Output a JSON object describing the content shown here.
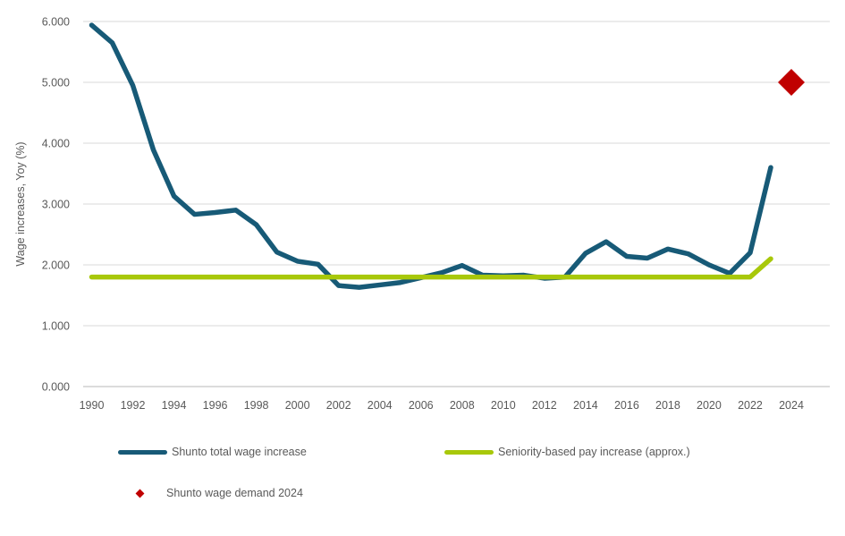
{
  "chart_data": {
    "type": "line",
    "title": "",
    "xlabel": "",
    "ylabel": "Wage increases, Yoy (%)",
    "xlim": [
      1990,
      2024
    ],
    "ylim": [
      0,
      6
    ],
    "grid": true,
    "legend_position": "bottom",
    "x_ticks": [
      "1990",
      "1992",
      "1994",
      "1996",
      "1998",
      "2000",
      "2002",
      "2004",
      "2006",
      "2008",
      "2010",
      "2012",
      "2014",
      "2016",
      "2018",
      "2020",
      "2022",
      "2024"
    ],
    "y_ticks": [
      "0.000",
      "1.000",
      "2.000",
      "3.000",
      "4.000",
      "5.000",
      "6.000"
    ],
    "x": [
      1990,
      1991,
      1992,
      1993,
      1994,
      1995,
      1996,
      1997,
      1998,
      1999,
      2000,
      2001,
      2002,
      2003,
      2004,
      2005,
      2006,
      2007,
      2008,
      2009,
      2010,
      2011,
      2012,
      2013,
      2014,
      2015,
      2016,
      2017,
      2018,
      2019,
      2020,
      2021,
      2022,
      2023
    ],
    "series": [
      {
        "name": "Shunto total wage increase",
        "color": "#175A77",
        "values": [
          5.94,
          5.65,
          4.95,
          3.89,
          3.13,
          2.83,
          2.86,
          2.9,
          2.66,
          2.21,
          2.06,
          2.01,
          1.66,
          1.63,
          1.67,
          1.71,
          1.79,
          1.87,
          1.99,
          1.83,
          1.82,
          1.83,
          1.78,
          1.8,
          2.19,
          2.38,
          2.14,
          2.11,
          2.26,
          2.18,
          2.0,
          1.86,
          2.2,
          3.6
        ]
      },
      {
        "name": "Seniority-based pay increase (approx.)",
        "color": "#A8C80A",
        "values": [
          1.8,
          1.8,
          1.8,
          1.8,
          1.8,
          1.8,
          1.8,
          1.8,
          1.8,
          1.8,
          1.8,
          1.8,
          1.8,
          1.8,
          1.8,
          1.8,
          1.8,
          1.8,
          1.8,
          1.8,
          1.8,
          1.8,
          1.8,
          1.8,
          1.8,
          1.8,
          1.8,
          1.8,
          1.8,
          1.8,
          1.8,
          1.8,
          1.8,
          2.1
        ]
      }
    ],
    "points": [
      {
        "name": "Shunto wage demand 2024",
        "marker": "diamond",
        "color": "#C00000",
        "x": 2024,
        "y": 5.0
      }
    ],
    "colors": {
      "axis_text": "#595959",
      "gridline": "#D9D9D9",
      "axis_line": "#C6C6C6"
    }
  }
}
